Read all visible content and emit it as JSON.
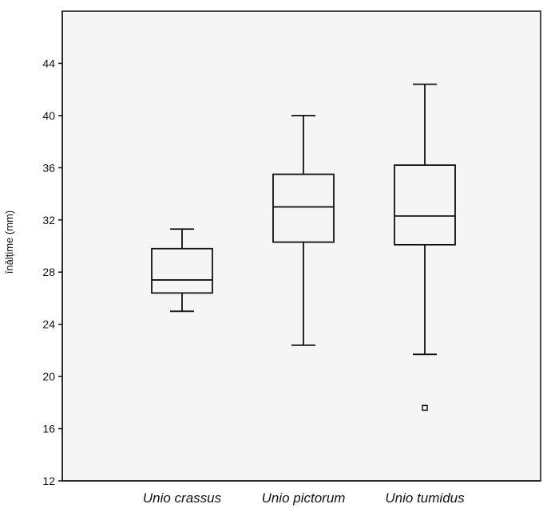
{
  "chart_data": {
    "type": "boxplot",
    "ylabel": "înălțime (mm)",
    "xlabel": "",
    "ylim": [
      12,
      48
    ],
    "yticks": [
      12,
      16,
      20,
      24,
      28,
      32,
      36,
      40,
      44
    ],
    "categories": [
      "Unio crassus",
      "Unio pictorum",
      "Unio tumidus"
    ],
    "boxes": [
      {
        "category": "Unio crassus",
        "whisker_low": 25.0,
        "q1": 26.4,
        "median": 27.4,
        "q3": 29.8,
        "whisker_high": 31.3,
        "outliers": []
      },
      {
        "category": "Unio pictorum",
        "whisker_low": 22.4,
        "q1": 30.3,
        "median": 33.0,
        "q3": 35.5,
        "whisker_high": 40.0,
        "outliers": []
      },
      {
        "category": "Unio tumidus",
        "whisker_low": 21.7,
        "q1": 30.1,
        "median": 32.3,
        "q3": 36.2,
        "whisker_high": 42.4,
        "outliers": [
          17.6
        ]
      }
    ],
    "grid": false,
    "legend": "none"
  },
  "colors": {
    "background": "#ffffff",
    "plot_background": "#f5f5f5",
    "stroke": "#111111"
  }
}
